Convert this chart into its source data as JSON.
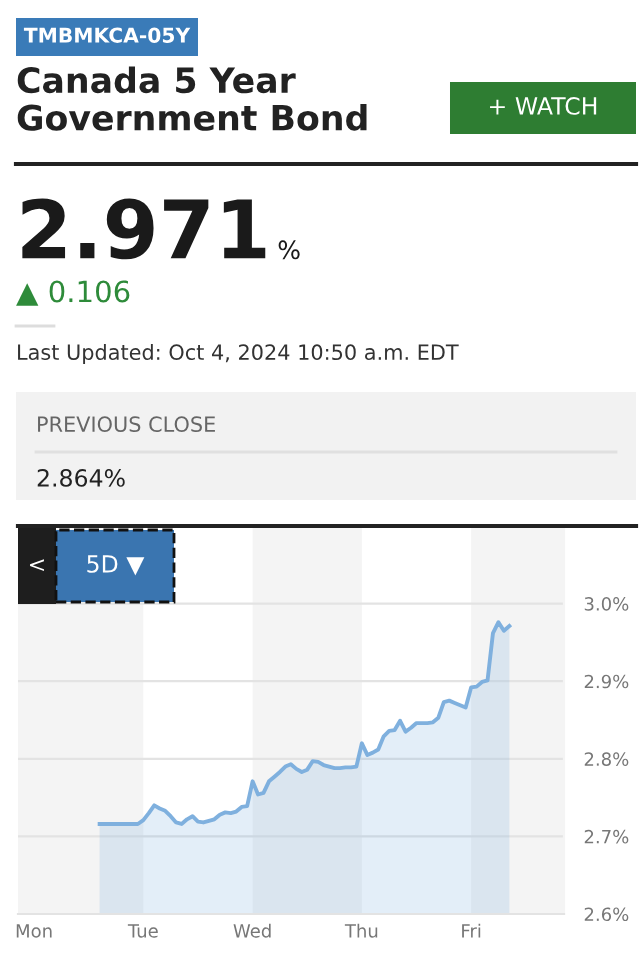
{
  "chart_data": {
    "type": "area",
    "title": "Canada 5 Year\nGovernment Bond",
    "annotations": [
      "TMBMKCA-05Y",
      "+ WATCH",
      "2.971",
      "%",
      "▲ 0.106",
      "Last Updated: Oct 4, 2024 10:50 a.m. EDT",
      "PREVIOUS CLOSE",
      "2.864%",
      "<",
      "5D ▼"
    ],
    "categories": [
      "Mon",
      null,
      null,
      null,
      null,
      null,
      null,
      null,
      null,
      null,
      null,
      null,
      null,
      null,
      null,
      null,
      null,
      null,
      null,
      null,
      "Tue",
      null,
      null,
      null,
      null,
      null,
      null,
      null,
      null,
      null,
      null,
      null,
      null,
      null,
      null,
      null,
      null,
      null,
      null,
      null,
      "Wed",
      null,
      null,
      null,
      null,
      null,
      null,
      null,
      null,
      null,
      null,
      null,
      null,
      null,
      null,
      null,
      null,
      null,
      null,
      null,
      "Thu",
      null,
      null,
      null,
      null,
      null,
      null,
      null,
      null,
      null,
      null,
      null,
      null,
      null,
      null,
      null,
      null,
      null,
      null,
      null,
      "Fri",
      null,
      null,
      null,
      null,
      null,
      null,
      null,
      null,
      null,
      null,
      null,
      null,
      null,
      null,
      null,
      null,
      null
    ],
    "series": [
      {
        "color": "#7fb0de",
        "values": [
          null,
          null,
          null,
          null,
          null,
          null,
          null,
          null,
          null,
          null,
          null,
          null,
          2.716,
          2.716,
          2.716,
          2.716,
          2.716,
          2.716,
          2.716,
          2.716,
          2.721,
          2.73,
          2.74,
          2.736,
          2.733,
          2.726,
          2.718,
          2.716,
          2.722,
          2.726,
          2.719,
          2.718,
          2.72,
          2.722,
          2.728,
          2.731,
          2.73,
          2.732,
          2.738,
          2.739,
          2.771,
          2.754,
          2.756,
          2.771,
          2.777,
          2.783,
          2.79,
          2.793,
          2.787,
          2.783,
          2.786,
          2.797,
          2.796,
          2.792,
          2.79,
          2.788,
          2.788,
          2.789,
          2.789,
          2.79,
          2.82,
          2.805,
          2.808,
          2.812,
          2.829,
          2.836,
          2.837,
          2.849,
          2.835,
          2.84,
          2.846,
          2.846,
          2.846,
          2.847,
          2.853,
          2.873,
          2.875,
          2.872,
          2.869,
          2.866,
          2.892,
          2.893,
          2.899,
          2.901,
          2.962,
          2.976,
          2.965,
          2.971,
          null,
          null,
          null,
          null,
          null,
          null,
          null,
          null,
          null,
          null
        ]
      }
    ],
    "ylim": [
      2.6,
      3.1
    ],
    "yticks": [
      {
        "value": 2.6,
        "label": "2.6%"
      },
      {
        "value": 2.7,
        "label": "2.7%"
      },
      {
        "value": 2.8,
        "label": "2.8%"
      },
      {
        "value": 2.9,
        "label": "2.9%"
      },
      {
        "value": 3.0,
        "label": "3.0%"
      }
    ],
    "grid": "y"
  }
}
